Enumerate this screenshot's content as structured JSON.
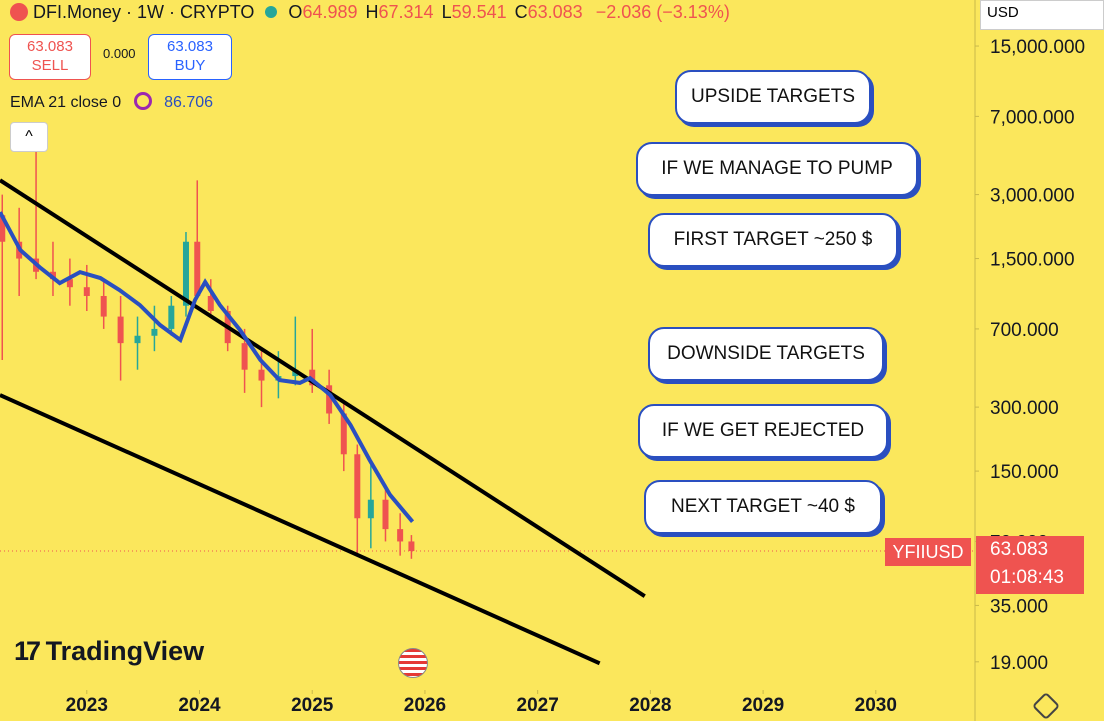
{
  "header": {
    "symbol": "DFI.Money · 1W · CRYPTO",
    "ohlc": [
      {
        "label": "O",
        "value": "64.989"
      },
      {
        "label": "H",
        "value": "67.314"
      },
      {
        "label": "L",
        "value": "59.541"
      },
      {
        "label": "C",
        "value": "63.083"
      }
    ],
    "change": "−2.036 (−3.13%)",
    "sell_price": "63.083",
    "sell_label": "SELL",
    "spread": "0.000",
    "buy_price": "63.083",
    "buy_label": "BUY",
    "indicator": "EMA 21 close 0",
    "indicator_value": "86.706",
    "currency": "USD",
    "ticker_tag": "YFIIUSD",
    "countdown": "01:08:43",
    "watermark": "TradingView"
  },
  "chart_data": {
    "type": "candlestick",
    "log_scale": true,
    "x": [
      2022.25,
      2022.4,
      2022.55,
      2022.7,
      2022.85,
      2023.0,
      2023.15,
      2023.3,
      2023.45,
      2023.6,
      2023.75,
      2023.88,
      2023.98,
      2024.1,
      2024.25,
      2024.4,
      2024.55,
      2024.7,
      2024.85,
      2025.0,
      2025.15,
      2025.28,
      2025.4,
      2025.52,
      2025.65,
      2025.78,
      2025.88
    ],
    "open": [
      2400,
      1800,
      1500,
      1300,
      1200,
      1100,
      1000,
      800,
      600,
      650,
      700,
      900,
      1800,
      1000,
      850,
      600,
      450,
      400,
      420,
      450,
      380,
      280,
      180,
      90,
      110,
      80,
      70
    ],
    "high": [
      3000,
      2600,
      5000,
      1800,
      1500,
      1400,
      1200,
      1000,
      800,
      900,
      1000,
      2000,
      3500,
      1200,
      900,
      700,
      550,
      550,
      800,
      700,
      450,
      320,
      200,
      160,
      130,
      95,
      75
    ],
    "low": [
      500,
      1000,
      1200,
      1000,
      900,
      850,
      700,
      400,
      450,
      550,
      650,
      800,
      1200,
      800,
      550,
      350,
      300,
      330,
      380,
      350,
      250,
      150,
      60,
      65,
      70,
      60,
      58
    ],
    "close": [
      1800,
      1500,
      1300,
      1200,
      1100,
      1000,
      800,
      600,
      650,
      700,
      900,
      1800,
      1000,
      850,
      600,
      450,
      400,
      420,
      450,
      380,
      280,
      180,
      90,
      110,
      80,
      70,
      63.083
    ],
    "up_color": "#26a69a",
    "down_color": "#ef5350",
    "ema": {
      "color": "#2a4fc0",
      "x": [
        2022.23,
        2022.41,
        2022.59,
        2022.76,
        2022.94,
        2023.12,
        2023.29,
        2023.47,
        2023.65,
        2023.83,
        2023.96,
        2024.05,
        2024.18,
        2024.36,
        2024.54,
        2024.71,
        2024.89,
        2024.98,
        2025.16,
        2025.34,
        2025.51,
        2025.69,
        2025.89
      ],
      "values": [
        2480,
        1645,
        1355,
        1150,
        1295,
        1215,
        1067,
        907,
        730,
        621,
        957,
        1163,
        907,
        691,
        500,
        402,
        390,
        411,
        342,
        247,
        169,
        116,
        86.706
      ]
    },
    "trend_lines": [
      {
        "color": "#000000",
        "x": [
          2022.23,
          2027.95
        ],
        "values": [
          3505,
          38.7
        ]
      },
      {
        "color": "#000000",
        "x": [
          2022.23,
          2027.55
        ],
        "values": [
          342,
          18.7
        ]
      }
    ],
    "annotations": [
      "UPSIDE TARGETS",
      "IF WE MANAGE TO PUMP",
      "FIRST TARGET ~250 $",
      "DOWNSIDE TARGETS",
      "IF WE GET REJECTED",
      "NEXT TARGET ~40 $"
    ],
    "xlim": [
      2022.23,
      2030.88
    ],
    "xticks": [
      2023,
      2024,
      2025,
      2026,
      2027,
      2028,
      2029,
      2030
    ],
    "ylim": [
      14,
      24700
    ],
    "yticks": [
      {
        "value": 15000,
        "label": "15,000.000"
      },
      {
        "value": 7000,
        "label": "7,000.000"
      },
      {
        "value": 3000,
        "label": "3,000.000"
      },
      {
        "value": 1500,
        "label": "1,500.000"
      },
      {
        "value": 700,
        "label": "700.000"
      },
      {
        "value": 300,
        "label": "300.000"
      },
      {
        "value": 150,
        "label": "150.000"
      },
      {
        "value": 70,
        "label": "70.000"
      },
      {
        "value": 35,
        "label": "35.000"
      },
      {
        "value": 19,
        "label": "19.000"
      }
    ]
  }
}
